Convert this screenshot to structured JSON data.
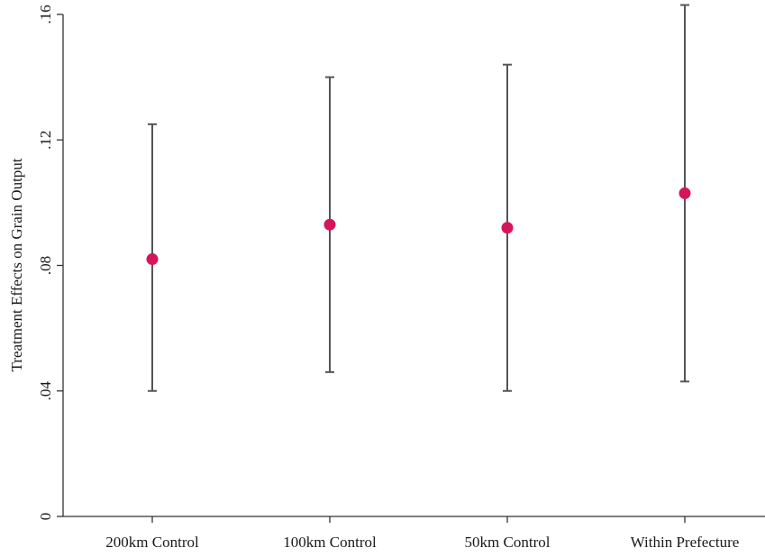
{
  "chart_data": {
    "type": "scatter",
    "title": "",
    "xlabel": "",
    "ylabel": "Treatment Effects on Grain Output",
    "categories": [
      "200km Control",
      "100km Control",
      "50km Control",
      "Within Prefecture"
    ],
    "series": [
      {
        "values": [
          0.082,
          0.093,
          0.092,
          0.103
        ],
        "ci_low": [
          0.04,
          0.046,
          0.04,
          0.043
        ],
        "ci_high": [
          0.125,
          0.14,
          0.144,
          0.163
        ]
      }
    ],
    "yticks": [
      0,
      0.04,
      0.08,
      0.12,
      0.16
    ],
    "ytick_labels": [
      "0",
      ".04",
      ".08",
      ".12",
      ".16"
    ],
    "ylim": [
      0,
      0.16
    ],
    "grid": false,
    "legend": "none",
    "colors": {
      "point": "#d6155a",
      "ci": "#555555",
      "axis": "#333333"
    }
  }
}
